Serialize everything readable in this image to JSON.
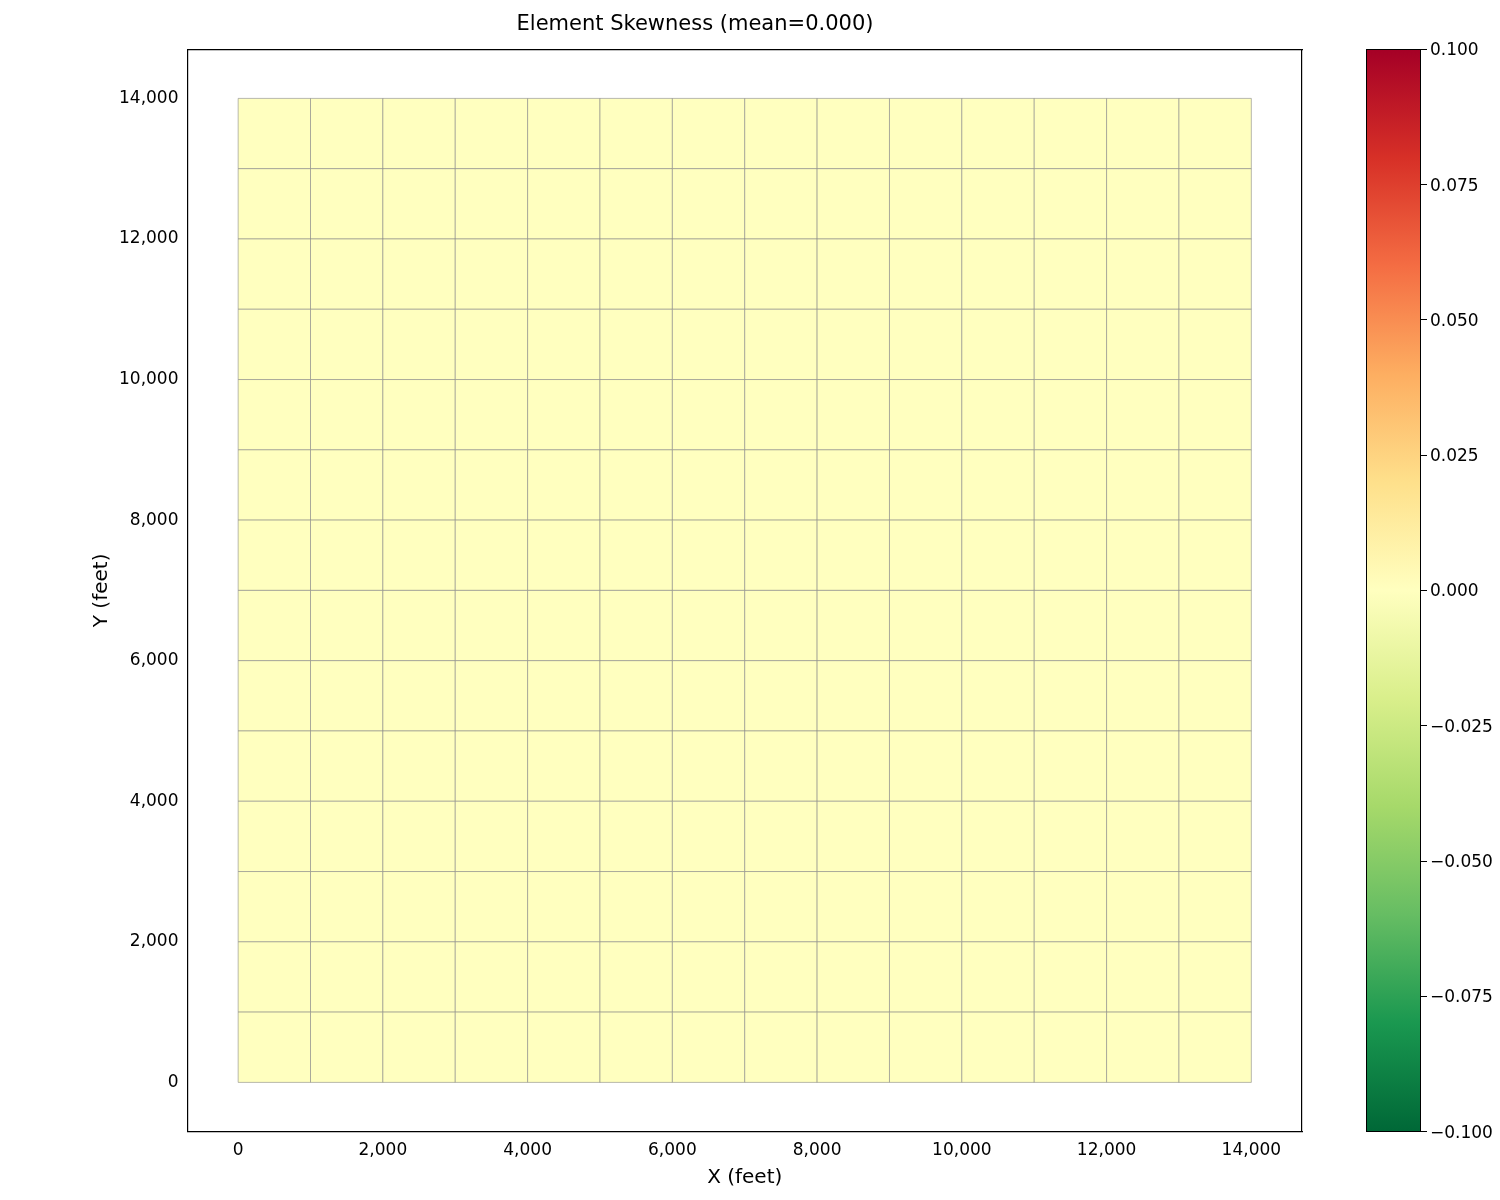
{
  "chart_data": {
    "type": "heatmap",
    "title": "Element Skewness (mean=0.000)",
    "xlabel": "X (feet)",
    "ylabel": "Y (feet)",
    "x": [
      500,
      1500,
      2500,
      3500,
      4500,
      5500,
      6500,
      7500,
      8500,
      9500,
      10500,
      11500,
      12500,
      13500
    ],
    "y": [
      13500,
      12500,
      11500,
      10500,
      9500,
      8500,
      7500,
      6500,
      5500,
      4500,
      3500,
      2500,
      1500,
      500
    ],
    "cells": [
      [
        0,
        0,
        0,
        0,
        0,
        0,
        0,
        0,
        0,
        0,
        0,
        0,
        0,
        0
      ],
      [
        0,
        0,
        0,
        0,
        0,
        0,
        0,
        0,
        0,
        0,
        0,
        0,
        0,
        0
      ],
      [
        0,
        0,
        0,
        0,
        0,
        0,
        0,
        0,
        0,
        0,
        0,
        0,
        0,
        0
      ],
      [
        0,
        0,
        0,
        0,
        0,
        0,
        0,
        0,
        0,
        0,
        0,
        0,
        0,
        0
      ],
      [
        0,
        0,
        0,
        0,
        0,
        0,
        0,
        0,
        0,
        0,
        0,
        0,
        0,
        0
      ],
      [
        0,
        0,
        0,
        0,
        0,
        0,
        0,
        0,
        0,
        0,
        0,
        0,
        0,
        0
      ],
      [
        0,
        0,
        0,
        0,
        0,
        0,
        0,
        0,
        0,
        0,
        0,
        0,
        0,
        0
      ],
      [
        0,
        0,
        0,
        0,
        0,
        0,
        0,
        0,
        0,
        0,
        0,
        0,
        0,
        0
      ],
      [
        0,
        0,
        0,
        0,
        0,
        0,
        0,
        0,
        0,
        0,
        0,
        0,
        0,
        0
      ],
      [
        0,
        0,
        0,
        0,
        0,
        0,
        0,
        0,
        0,
        0,
        0,
        0,
        0,
        0
      ],
      [
        0,
        0,
        0,
        0,
        0,
        0,
        0,
        0,
        0,
        0,
        0,
        0,
        0,
        0
      ],
      [
        0,
        0,
        0,
        0,
        0,
        0,
        0,
        0,
        0,
        0,
        0,
        0,
        0,
        0
      ],
      [
        0,
        0,
        0,
        0,
        0,
        0,
        0,
        0,
        0,
        0,
        0,
        0,
        0,
        0
      ],
      [
        0,
        0,
        0,
        0,
        0,
        0,
        0,
        0,
        0,
        0,
        0,
        0,
        0,
        0
      ]
    ],
    "xlim": [
      -700,
      14700
    ],
    "ylim": [
      -700,
      14700
    ],
    "xticks": [
      0,
      {
        "value": 2000,
        "label": "2,000"
      },
      {
        "value": 4000,
        "label": "4,000"
      },
      {
        "value": 6000,
        "label": "6,000"
      },
      {
        "value": 8000,
        "label": "8,000"
      },
      {
        "value": 10000,
        "label": "10,000"
      },
      {
        "value": 12000,
        "label": "12,000"
      },
      {
        "value": 14000,
        "label": "14,000"
      }
    ],
    "yticks": [
      0,
      {
        "value": 2000,
        "label": "2,000"
      },
      {
        "value": 4000,
        "label": "4,000"
      },
      {
        "value": 6000,
        "label": "6,000"
      },
      {
        "value": 8000,
        "label": "8,000"
      },
      {
        "value": 10000,
        "label": "10,000"
      },
      {
        "value": 12000,
        "label": "12,000"
      },
      {
        "value": 14000,
        "label": "14,000"
      }
    ],
    "clim": [
      -0.1,
      0.1
    ],
    "cticks": [
      {
        "value": -0.1,
        "label": "−0.100"
      },
      {
        "value": -0.075,
        "label": "−0.075"
      },
      {
        "value": -0.05,
        "label": "−0.050"
      },
      {
        "value": -0.025,
        "label": "−0.025"
      },
      {
        "value": 0,
        "label": "0.000"
      },
      {
        "value": 0.025,
        "label": "0.025"
      },
      {
        "value": 0.05,
        "label": "0.050"
      },
      {
        "value": 0.075,
        "label": "0.075"
      },
      {
        "value": 0.1,
        "label": "0.100"
      }
    ]
  }
}
